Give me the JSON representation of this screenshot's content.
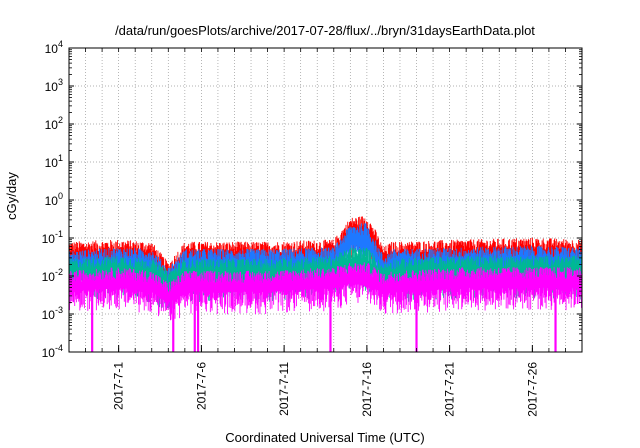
{
  "chart_data": {
    "type": "line",
    "title": "/data/run/goesPlots/archive/2017-07-28/flux/../bryn/31daysEarthData.plot",
    "xlabel": "Coordinated Universal Time (UTC)",
    "ylabel": "cGy/day",
    "y_scale": "log",
    "ylim": [
      0.0001,
      10000
    ],
    "xlim": [
      "2017-06-28",
      "2017-07-29"
    ],
    "grid": true,
    "x_ticks": [
      {
        "date": "2017-07-01",
        "label": "2017-7-1"
      },
      {
        "date": "2017-07-06",
        "label": "2017-7-6"
      },
      {
        "date": "2017-07-11",
        "label": "2017-7-11"
      },
      {
        "date": "2017-07-16",
        "label": "2017-7-16"
      },
      {
        "date": "2017-07-21",
        "label": "2017-7-21"
      },
      {
        "date": "2017-07-26",
        "label": "2017-7-26"
      }
    ],
    "y_ticks": [
      {
        "value": 0.0001,
        "base": "10",
        "exp": "-4"
      },
      {
        "value": 0.001,
        "base": "10",
        "exp": "-3"
      },
      {
        "value": 0.01,
        "base": "10",
        "exp": "-2"
      },
      {
        "value": 0.1,
        "base": "10",
        "exp": "-1"
      },
      {
        "value": 1,
        "base": "10",
        "exp": "0"
      },
      {
        "value": 10,
        "base": "10",
        "exp": "1"
      },
      {
        "value": 100,
        "base": "10",
        "exp": "2"
      },
      {
        "value": 1000,
        "base": "10",
        "exp": "3"
      },
      {
        "value": 10000,
        "base": "10",
        "exp": "4"
      }
    ],
    "series": [
      {
        "color": "#ff0000",
        "levels": [
          [
            "2017-06-28",
            0.07
          ],
          [
            "2017-07-01",
            0.08
          ],
          [
            "2017-07-03",
            0.07
          ],
          [
            "2017-07-04",
            0.02
          ],
          [
            "2017-07-05",
            0.07
          ],
          [
            "2017-07-10",
            0.07
          ],
          [
            "2017-07-14",
            0.08
          ],
          [
            "2017-07-15",
            0.3
          ],
          [
            "2017-07-16",
            0.35
          ],
          [
            "2017-07-16.5",
            0.15
          ],
          [
            "2017-07-17",
            0.05
          ],
          [
            "2017-07-17.5",
            0.07
          ],
          [
            "2017-07-22",
            0.08
          ],
          [
            "2017-07-26",
            0.09
          ],
          [
            "2017-07-29",
            0.08
          ]
        ]
      },
      {
        "color": "#1e78ff",
        "levels": [
          [
            "2017-06-28",
            0.04
          ],
          [
            "2017-07-01",
            0.05
          ],
          [
            "2017-07-03",
            0.045
          ],
          [
            "2017-07-04",
            0.015
          ],
          [
            "2017-07-05",
            0.045
          ],
          [
            "2017-07-10",
            0.045
          ],
          [
            "2017-07-14",
            0.05
          ],
          [
            "2017-07-15",
            0.2
          ],
          [
            "2017-07-16",
            0.22
          ],
          [
            "2017-07-16.5",
            0.08
          ],
          [
            "2017-07-17",
            0.03
          ],
          [
            "2017-07-17.5",
            0.045
          ],
          [
            "2017-07-22",
            0.05
          ],
          [
            "2017-07-26",
            0.055
          ],
          [
            "2017-07-29",
            0.05
          ]
        ]
      },
      {
        "color": "#00b894",
        "levels": [
          [
            "2017-06-28",
            0.025
          ],
          [
            "2017-07-01",
            0.03
          ],
          [
            "2017-07-03",
            0.025
          ],
          [
            "2017-07-04",
            0.012
          ],
          [
            "2017-07-05",
            0.025
          ],
          [
            "2017-07-10",
            0.025
          ],
          [
            "2017-07-14",
            0.03
          ],
          [
            "2017-07-15",
            0.05
          ],
          [
            "2017-07-16",
            0.05
          ],
          [
            "2017-07-16.5",
            0.03
          ],
          [
            "2017-07-17",
            0.018
          ],
          [
            "2017-07-17.5",
            0.025
          ],
          [
            "2017-07-22",
            0.03
          ],
          [
            "2017-07-26",
            0.03
          ],
          [
            "2017-07-29",
            0.03
          ]
        ]
      },
      {
        "color": "#ff00ff",
        "levels": [
          [
            "2017-06-28",
            0.012
          ],
          [
            "2017-07-01",
            0.015
          ],
          [
            "2017-07-03",
            0.012
          ],
          [
            "2017-07-04",
            0.006
          ],
          [
            "2017-07-05",
            0.012
          ],
          [
            "2017-07-10",
            0.012
          ],
          [
            "2017-07-14",
            0.015
          ],
          [
            "2017-07-15",
            0.02
          ],
          [
            "2017-07-16",
            0.02
          ],
          [
            "2017-07-16.5",
            0.015
          ],
          [
            "2017-07-17",
            0.01
          ],
          [
            "2017-07-17.5",
            0.012
          ],
          [
            "2017-07-22",
            0.015
          ],
          [
            "2017-07-26",
            0.015
          ],
          [
            "2017-07-29",
            0.015
          ]
        ]
      }
    ],
    "dropouts": [
      "2017-06-29.4",
      "2017-07-04.3",
      "2017-07-05.6",
      "2017-07-05.8",
      "2017-07-13.8",
      "2017-07-19.0",
      "2017-07-27.4"
    ]
  }
}
